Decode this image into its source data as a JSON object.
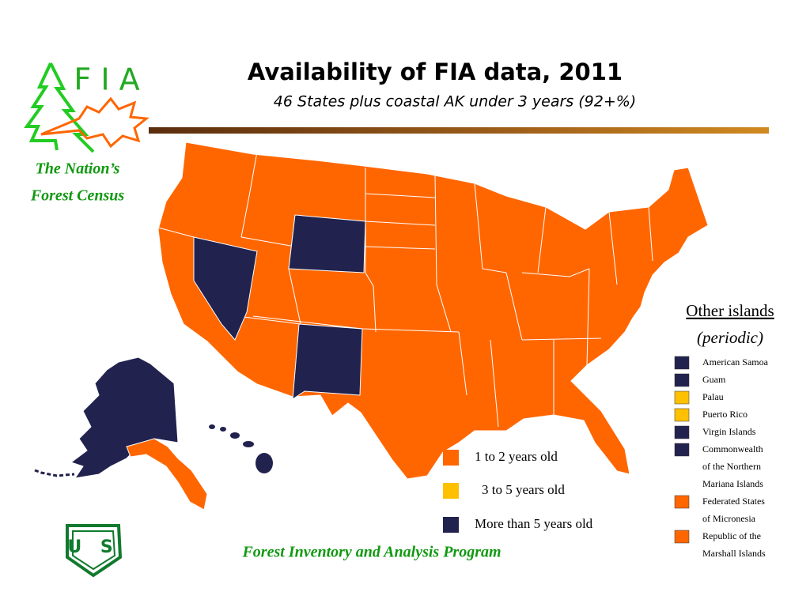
{
  "logo": {
    "letters": "F I A",
    "tagline": [
      "The Nation’s",
      "Forest Census"
    ]
  },
  "header": {
    "title": "Availability of FIA data, 2011",
    "subtitle": "46 States plus coastal AK under 3 years (92+%)"
  },
  "legend": {
    "items": [
      {
        "label": "1 to 2 years old",
        "color": "#ff6600"
      },
      {
        "label": "3 to 5 years old",
        "color": "#ffc000"
      },
      {
        "label": "More than 5 years old",
        "color": "#22224f"
      }
    ]
  },
  "other_islands": {
    "title": "Other islands",
    "subtitle": "(periodic)",
    "items": [
      {
        "lines": [
          "American Samoa"
        ],
        "color": "#22224f"
      },
      {
        "lines": [
          "Guam"
        ],
        "color": "#22224f"
      },
      {
        "lines": [
          "Palau"
        ],
        "color": "#ffc000"
      },
      {
        "lines": [
          "Puerto Rico"
        ],
        "color": "#ffc000"
      },
      {
        "lines": [
          "Virgin Islands"
        ],
        "color": "#22224f"
      },
      {
        "lines": [
          "Commonwealth",
          "of the Northern",
          "Mariana Islands"
        ],
        "color": "#22224f"
      },
      {
        "lines": [
          "Federated States",
          "of Micronesia"
        ],
        "color": "#ff6600"
      },
      {
        "lines": [
          "Republic of the",
          "Marshall Islands"
        ],
        "color": "#ff6600"
      }
    ]
  },
  "shield": {
    "letters": "U S"
  },
  "footer": "Forest Inventory and Analysis Program"
}
